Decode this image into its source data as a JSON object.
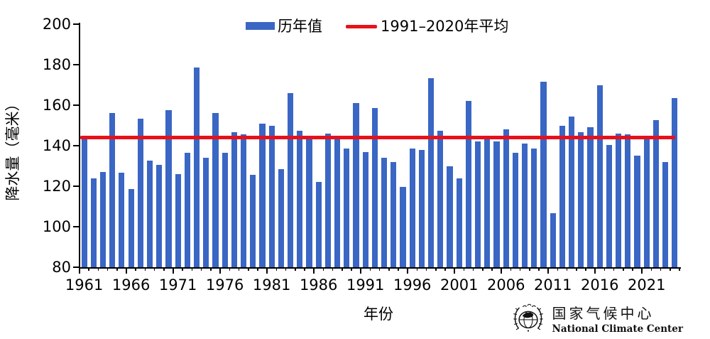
{
  "chart_data": {
    "type": "bar",
    "title": "",
    "series_label": "历年值",
    "xlabel": "年份",
    "ylabel": "降水量（毫米）",
    "ylim": [
      80,
      200
    ],
    "yticks": [
      80,
      100,
      120,
      140,
      160,
      180,
      200
    ],
    "xtick_years": [
      1961,
      1966,
      1971,
      1976,
      1981,
      1986,
      1991,
      1996,
      2001,
      2006,
      2011,
      2016,
      2021
    ],
    "grid": false,
    "legend_position": "top-center",
    "categories": [
      1961,
      1962,
      1963,
      1964,
      1965,
      1966,
      1967,
      1968,
      1969,
      1970,
      1971,
      1972,
      1973,
      1974,
      1975,
      1976,
      1977,
      1978,
      1979,
      1980,
      1981,
      1982,
      1983,
      1984,
      1985,
      1986,
      1987,
      1988,
      1989,
      1990,
      1991,
      1992,
      1993,
      1994,
      1995,
      1996,
      1997,
      1998,
      1999,
      2000,
      2001,
      2002,
      2003,
      2004,
      2005,
      2006,
      2007,
      2008,
      2009,
      2010,
      2011,
      2012,
      2013,
      2014,
      2015,
      2016,
      2017,
      2018,
      2019,
      2020,
      2021,
      2022,
      2023,
      2024
    ],
    "values": [
      143.5,
      124,
      127,
      156,
      126.5,
      118.5,
      153.5,
      132.5,
      130.5,
      157.5,
      126,
      136.5,
      178.5,
      134,
      156,
      136.5,
      146.5,
      145.5,
      125.5,
      151,
      150,
      128.5,
      166,
      147.5,
      143,
      122,
      146,
      143,
      138.5,
      161,
      137,
      158.5,
      134,
      132,
      119.5,
      138.5,
      138,
      173.5,
      147.5,
      130,
      124,
      162,
      142,
      144.5,
      142,
      148,
      136.5,
      141,
      138.5,
      171.5,
      106.5,
      150,
      154.5,
      146.5,
      149,
      170,
      140.5,
      146,
      145.5,
      135,
      144.5,
      152.5,
      132,
      163.5
    ],
    "average_line": {
      "label": "1991–2020年平均",
      "value": 144
    },
    "bar_color": "#3A66C4",
    "line_color": "#E8111A",
    "axis_color": "#000000"
  },
  "logo": {
    "name_cn": "国家气候中心",
    "name_en": "National Climate Center"
  }
}
